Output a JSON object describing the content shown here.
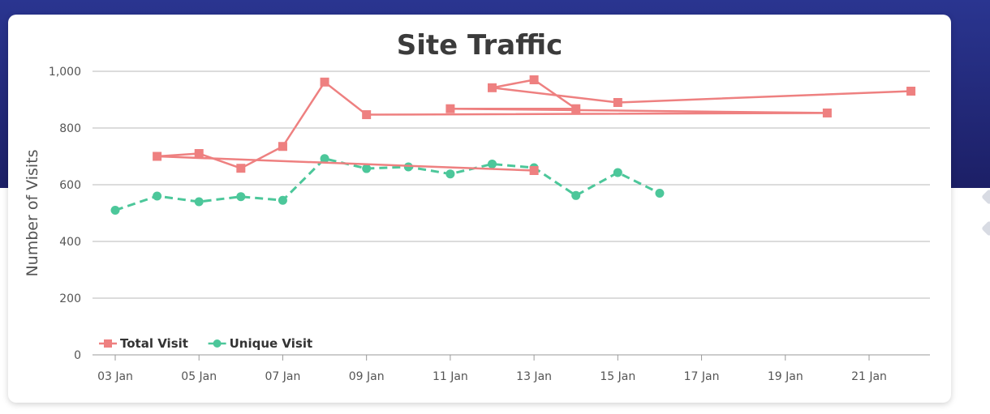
{
  "chart_data": {
    "type": "line",
    "title": "Site Traffic",
    "ylabel": "Number of Visits",
    "xlabel": "",
    "ylim": [
      0,
      1000
    ],
    "yticks": [
      {
        "value": 0,
        "label": "0"
      },
      {
        "value": 200,
        "label": "200"
      },
      {
        "value": 400,
        "label": "400"
      },
      {
        "value": 600,
        "label": "600"
      },
      {
        "value": 800,
        "label": "800"
      },
      {
        "value": 1000,
        "label": "1,000"
      }
    ],
    "xlim": [
      "2024-01-03",
      "2024-01-23"
    ],
    "xticks": [
      {
        "date": "2024-01-03",
        "label": "03 Jan"
      },
      {
        "date": "2024-01-05",
        "label": "05 Jan"
      },
      {
        "date": "2024-01-07",
        "label": "07 Jan"
      },
      {
        "date": "2024-01-09",
        "label": "09 Jan"
      },
      {
        "date": "2024-01-11",
        "label": "11 Jan"
      },
      {
        "date": "2024-01-13",
        "label": "13 Jan"
      },
      {
        "date": "2024-01-15",
        "label": "15 Jan"
      },
      {
        "date": "2024-01-17",
        "label": "17 Jan"
      },
      {
        "date": "2024-01-19",
        "label": "19 Jan"
      },
      {
        "date": "2024-01-21",
        "label": "21 Jan"
      }
    ],
    "grid": "horizontal",
    "legend": "bottom-left",
    "series": [
      {
        "name": "Total Visit",
        "color": "#ee8080",
        "marker": "square",
        "dash": "solid",
        "points": [
          {
            "x": "2024-01-04",
            "y": 700
          },
          {
            "x": "2024-01-05",
            "y": 710
          },
          {
            "x": "2024-01-06",
            "y": 658
          },
          {
            "x": "2024-01-07",
            "y": 735
          },
          {
            "x": "2024-01-08",
            "y": 962
          },
          {
            "x": "2024-01-09",
            "y": 847
          },
          {
            "x": "2024-01-20",
            "y": 853
          },
          {
            "x": "2024-01-11",
            "y": 868
          },
          {
            "x": "2024-01-14",
            "y": 868
          },
          {
            "x": "2024-01-13",
            "y": 970
          },
          {
            "x": "2024-01-12",
            "y": 942
          },
          {
            "x": "2024-01-15",
            "y": 890
          },
          {
            "x": "2024-01-22",
            "y": 930
          }
        ]
      },
      {
        "name": "Unique Visit",
        "color": "#4cc79a",
        "marker": "circle",
        "dash": "dashed",
        "points": [
          {
            "x": "2024-01-03",
            "y": 510
          },
          {
            "x": "2024-01-04",
            "y": 560
          },
          {
            "x": "2024-01-05",
            "y": 540
          },
          {
            "x": "2024-01-06",
            "y": 558
          },
          {
            "x": "2024-01-07",
            "y": 545
          },
          {
            "x": "2024-01-08",
            "y": 692
          },
          {
            "x": "2024-01-09",
            "y": 657
          },
          {
            "x": "2024-01-10",
            "y": 663
          },
          {
            "x": "2024-01-11",
            "y": 638
          },
          {
            "x": "2024-01-12",
            "y": 673
          },
          {
            "x": "2024-01-13",
            "y": 660
          },
          {
            "x": "2024-01-14",
            "y": 562
          },
          {
            "x": "2024-01-15",
            "y": 643
          },
          {
            "x": "2024-01-16",
            "y": 570
          }
        ]
      }
    ],
    "extra_segments": [
      {
        "series": "Total Visit",
        "from": {
          "x": "2024-01-04",
          "y": 700
        },
        "to": {
          "x": "2024-01-13",
          "y": 650
        },
        "end_marker": true
      }
    ]
  }
}
